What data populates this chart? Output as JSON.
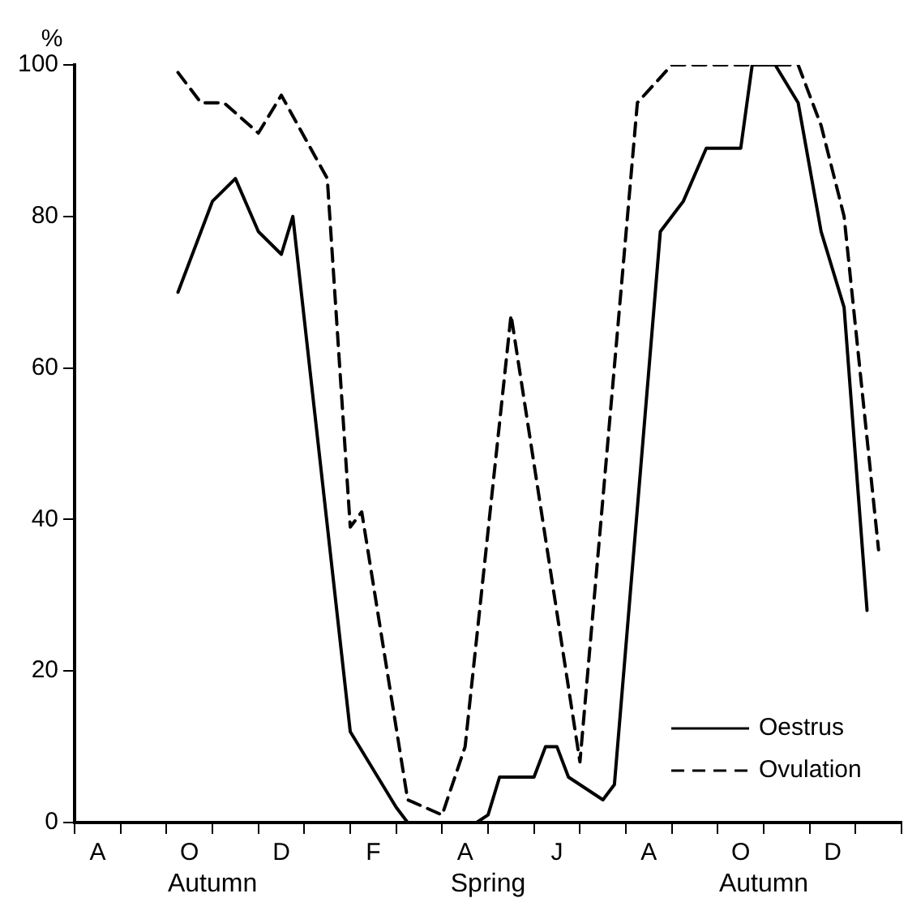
{
  "chart_data": {
    "type": "line",
    "ylabel": "%",
    "categories": [
      null,
      null,
      "A",
      null,
      null,
      null,
      null,
      null,
      null,
      null,
      "O",
      null,
      null,
      null,
      null,
      null,
      null,
      null,
      "D",
      null,
      null,
      null,
      null,
      null,
      null,
      null,
      "F",
      null,
      null,
      null,
      null,
      null,
      null,
      null,
      "A",
      null,
      null,
      null,
      null,
      null,
      null,
      null,
      "J",
      null,
      null,
      null,
      null,
      null,
      null,
      null,
      "A",
      null,
      null,
      null,
      null,
      null,
      null,
      null,
      "O",
      null,
      null,
      null,
      null,
      null,
      null,
      null,
      "D",
      null,
      null,
      null,
      null,
      null,
      null
    ],
    "annotations": [
      "Autumn",
      "Spring",
      "Autumn"
    ],
    "ylim": [
      0,
      100
    ],
    "yticks": [
      0,
      20,
      40,
      60,
      80,
      100
    ],
    "grid": false,
    "legend": "bottom right",
    "marker": "none",
    "series": [
      {
        "name": "Oestrus",
        "color": "#000000",
        "line_style": "solid",
        "values": [
          null,
          null,
          null,
          null,
          null,
          null,
          null,
          null,
          null,
          70,
          null,
          null,
          82,
          null,
          85,
          null,
          78,
          null,
          75,
          80,
          null,
          null,
          null,
          null,
          12,
          null,
          null,
          null,
          2,
          0,
          null,
          null,
          null,
          null,
          null,
          0,
          1,
          6,
          null,
          null,
          6,
          10,
          10,
          6,
          null,
          null,
          3,
          5,
          null,
          null,
          null,
          78,
          null,
          82,
          null,
          89,
          null,
          null,
          89,
          100,
          null,
          100,
          null,
          95,
          null,
          78,
          null,
          68,
          null,
          28,
          null,
          null,
          null
        ]
      },
      {
        "name": "Ovulation",
        "color": "#000000",
        "line_style": "dashed",
        "values": [
          null,
          null,
          null,
          null,
          null,
          null,
          null,
          null,
          null,
          99,
          null,
          95,
          null,
          95,
          null,
          null,
          91,
          null,
          96,
          null,
          null,
          null,
          85,
          null,
          39,
          41,
          null,
          null,
          null,
          3,
          null,
          null,
          1,
          null,
          10,
          null,
          null,
          null,
          67,
          null,
          null,
          null,
          null,
          null,
          8,
          null,
          null,
          null,
          null,
          95,
          null,
          null,
          100,
          null,
          null,
          null,
          null,
          null,
          null,
          null,
          null,
          null,
          null,
          100,
          null,
          92,
          null,
          80,
          null,
          null,
          36,
          null,
          null
        ]
      }
    ]
  }
}
